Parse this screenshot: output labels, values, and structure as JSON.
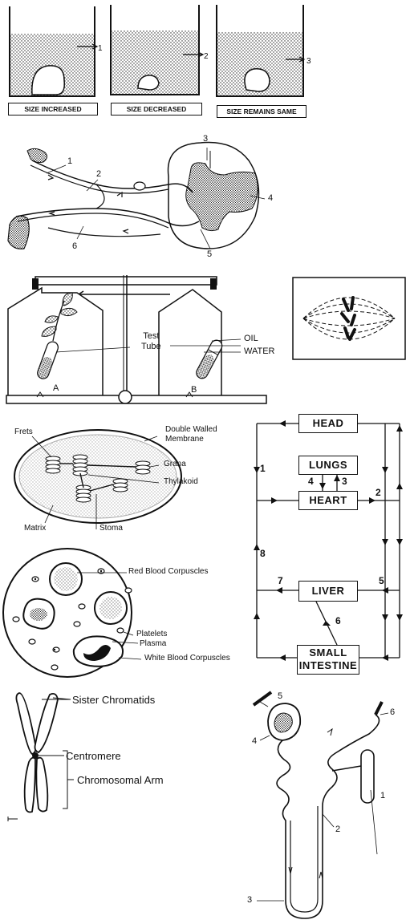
{
  "beakers": {
    "captions": [
      "SIZE INCREASED",
      "SIZE DECREASED",
      "SIZE REMAINS SAME"
    ],
    "markers": [
      "1",
      "2",
      "3"
    ]
  },
  "reflex_arc": {
    "labels": [
      "1",
      "2",
      "3",
      "4",
      "5",
      "6"
    ]
  },
  "balance": {
    "left_beaker": "A",
    "right_beaker": "B",
    "test_tube": "Test\nTube",
    "oil": "OIL",
    "water": "WATER"
  },
  "chloroplast": {
    "frets": "Frets",
    "double_wall": "Double Walled\nMembrane",
    "grana": "Grana",
    "thylakoid": "Thylakoid",
    "matrix": "Matrix",
    "stoma": "Stoma"
  },
  "circulation": {
    "boxes": [
      "HEAD",
      "LUNGS",
      "HEART",
      "LIVER",
      "SMALL INTESTINE"
    ],
    "numbers": [
      "1",
      "2",
      "3",
      "4",
      "5",
      "6",
      "7",
      "8"
    ]
  },
  "blood": {
    "rbc": "Red Blood Corpuscles",
    "platelets": "Platelets",
    "plasma": "Plasma",
    "wbc": "White Blood Corpuscles"
  },
  "chromosome": {
    "sister": "Sister Chromatids",
    "centromere": "Centromere",
    "arm": "Chromosomal Arm"
  },
  "nephron": {
    "labels": [
      "1",
      "2",
      "3",
      "4",
      "5",
      "6"
    ]
  }
}
